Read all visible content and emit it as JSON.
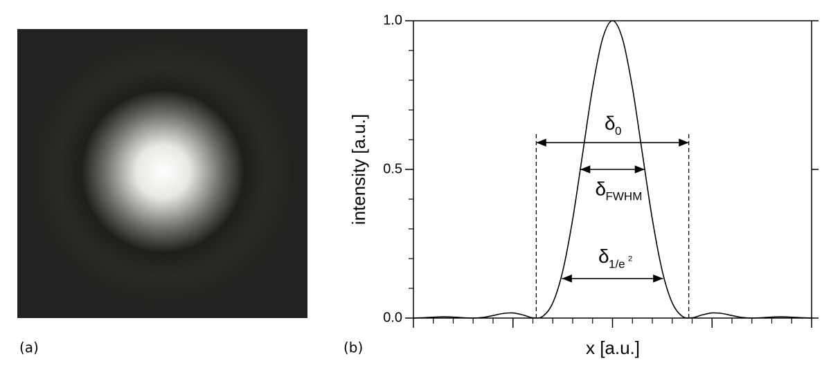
{
  "panel_labels": [
    "(a)",
    "(b)"
  ],
  "chart_data": {
    "type": "line",
    "xlabel": "x [a.u.]",
    "ylabel": "intensity [a.u.]",
    "x": [
      -10,
      -9.5,
      -9,
      -8.5,
      -8,
      -7.5,
      -7,
      -6.5,
      -6,
      -5.5,
      -5,
      -4.5,
      -4,
      -3.5,
      -3,
      -2.5,
      -2,
      -1.5,
      -1,
      -0.5,
      0,
      0.5,
      1,
      1.5,
      2,
      2.5,
      3,
      3.5,
      4,
      4.5,
      5,
      5.5,
      6,
      6.5,
      7,
      7.5,
      8,
      8.5,
      9,
      9.5,
      10
    ],
    "series": [
      {
        "name": "intensity",
        "color": "#000000",
        "values": [
          0.0001,
          0.0012,
          0.003,
          0.0041,
          0.0034,
          0.0013,
          0,
          0.0022,
          0.0085,
          0.0154,
          0.0172,
          0.0105,
          0.0011,
          0.0062,
          0.0511,
          0.1581,
          0.3326,
          0.5534,
          0.7746,
          0.9394,
          1,
          0.9394,
          0.7746,
          0.5534,
          0.3326,
          0.1581,
          0.0511,
          0.0062,
          0.0011,
          0.0105,
          0.0172,
          0.0154,
          0.0085,
          0.0022,
          0,
          0.0013,
          0.0034,
          0.0041,
          0.003,
          0.0012,
          0.0001
        ]
      }
    ],
    "xlim": [
      -10,
      10
    ],
    "xticks": [
      -10,
      -5,
      0,
      5,
      10
    ],
    "xminor": [
      -9,
      -8,
      -7,
      -6,
      -4,
      -3,
      -2,
      -1,
      1,
      2,
      3,
      4,
      6,
      7,
      8,
      9
    ],
    "ylim": [
      0,
      1
    ],
    "yticks": [
      {
        "value": 0,
        "label": "0.0"
      },
      {
        "value": 0.5,
        "label": "0.5"
      },
      {
        "value": 1,
        "label": "1.0"
      }
    ],
    "yminor": [
      0.1,
      0.2,
      0.3,
      0.4,
      0.6,
      0.7,
      0.8,
      0.9
    ],
    "zero_lines": {
      "x": [
        -3.83,
        3.83
      ],
      "ymax": 0.62
    },
    "annotations": [
      {
        "label": "δ",
        "sub": "0",
        "x": [
          -3.83,
          3.83
        ],
        "y": 0.59
      },
      {
        "label": "δ",
        "sub": "FWHM",
        "x": [
          -1.62,
          1.62
        ],
        "y": 0.5
      },
      {
        "label": "δ",
        "sub": "1/e",
        "sup": "2",
        "x": [
          -2.54,
          2.54
        ],
        "y": 0.133
      }
    ]
  }
}
